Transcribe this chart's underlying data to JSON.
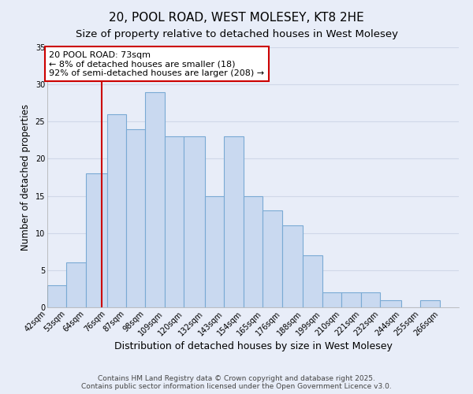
{
  "title": "20, POOL ROAD, WEST MOLESEY, KT8 2HE",
  "subtitle": "Size of property relative to detached houses in West Molesey",
  "xlabel": "Distribution of detached houses by size in West Molesey",
  "ylabel": "Number of detached properties",
  "bin_labels": [
    "42sqm",
    "53sqm",
    "64sqm",
    "76sqm",
    "87sqm",
    "98sqm",
    "109sqm",
    "120sqm",
    "132sqm",
    "143sqm",
    "154sqm",
    "165sqm",
    "176sqm",
    "188sqm",
    "199sqm",
    "210sqm",
    "221sqm",
    "232sqm",
    "244sqm",
    "255sqm",
    "266sqm"
  ],
  "bin_edges": [
    42,
    53,
    64,
    76,
    87,
    98,
    109,
    120,
    132,
    143,
    154,
    165,
    176,
    188,
    199,
    210,
    221,
    232,
    244,
    255,
    266
  ],
  "bar_heights": [
    3,
    6,
    18,
    26,
    24,
    29,
    23,
    23,
    15,
    23,
    15,
    13,
    11,
    7,
    2,
    2,
    2,
    1,
    0,
    1
  ],
  "bar_color": "#c9d9f0",
  "bar_edge_color": "#7aaad4",
  "vline_x": 73,
  "vline_color": "#cc0000",
  "annotation_title": "20 POOL ROAD: 73sqm",
  "annotation_line1": "← 8% of detached houses are smaller (18)",
  "annotation_line2": "92% of semi-detached houses are larger (208) →",
  "annotation_box_edge": "#cc0000",
  "ylim": [
    0,
    35
  ],
  "yticks": [
    0,
    5,
    10,
    15,
    20,
    25,
    30,
    35
  ],
  "background_color": "#e8edf8",
  "grid_color": "#d0d8e8",
  "footer1": "Contains HM Land Registry data © Crown copyright and database right 2025.",
  "footer2": "Contains public sector information licensed under the Open Government Licence v3.0.",
  "title_fontsize": 11,
  "subtitle_fontsize": 9.5,
  "xlabel_fontsize": 9,
  "ylabel_fontsize": 8.5,
  "tick_fontsize": 7,
  "annotation_fontsize": 8,
  "footer_fontsize": 6.5
}
